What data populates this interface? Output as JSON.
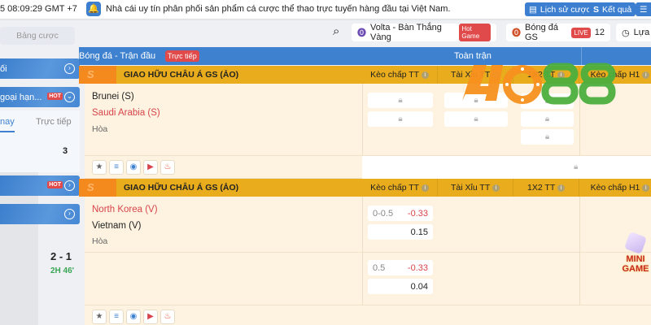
{
  "topbar": {
    "clock": "5 08:09:29 GMT +7",
    "notice": "Nhà cái uy tín phân phối sản phẩm cá cược thể thao trực tuyến hàng đầu tại Việt Nam.",
    "history_label": "Lịch sử cược",
    "results_label": "Kết quả"
  },
  "sidebar": {
    "search_placeholder": "Bảng cược",
    "items": [
      {
        "label": "ối"
      },
      {
        "label": "goại hạn...",
        "badge": "HOT"
      },
      {
        "label": "",
        "badge": "HOT"
      },
      {
        "label": ""
      }
    ],
    "tabs": [
      "nay",
      "Trực tiếp"
    ],
    "count": "3",
    "score": "2 - 1",
    "time": "2H 46'"
  },
  "chips": [
    {
      "label": "Volta - Bàn Thắng Vàng",
      "badge": "Hot Game"
    },
    {
      "label": "Bóng đá GS",
      "badge": "LIVE",
      "count": "12"
    },
    {
      "label": "Lựa c"
    }
  ],
  "header": {
    "title": "Bóng đá - Trận đầu",
    "live_badge": "Trực tiếp",
    "section": "Toàn trận"
  },
  "columns": [
    "Kèo chấp TT",
    "Tài Xỉu TT",
    "1X2 TT",
    "Kèo chấp H1"
  ],
  "leagues": [
    {
      "name": "GIAO HỮU CHÂU Á GS (ẢO)",
      "home": "Brunei (S)",
      "away": "Saudi Arabia (S)",
      "draw": "Hòa"
    },
    {
      "name": "GIAO HỮU CHÂU Á GS (ẢO)",
      "home": "North Korea (V)",
      "away": "Vietnam (V)",
      "draw": "Hòa",
      "odds": [
        {
          "line": "0-0.5",
          "home": "-0.33",
          "away": "0.15"
        },
        {
          "line": "0.5",
          "home": "-0.33",
          "away": "0.04"
        }
      ]
    }
  ],
  "watermark": "4O88",
  "promo": "MINI GAME",
  "colors": {
    "accent": "#3e82cf",
    "league": "#e8ac1c",
    "negative": "#d9434b",
    "live_time": "#3aa655"
  }
}
